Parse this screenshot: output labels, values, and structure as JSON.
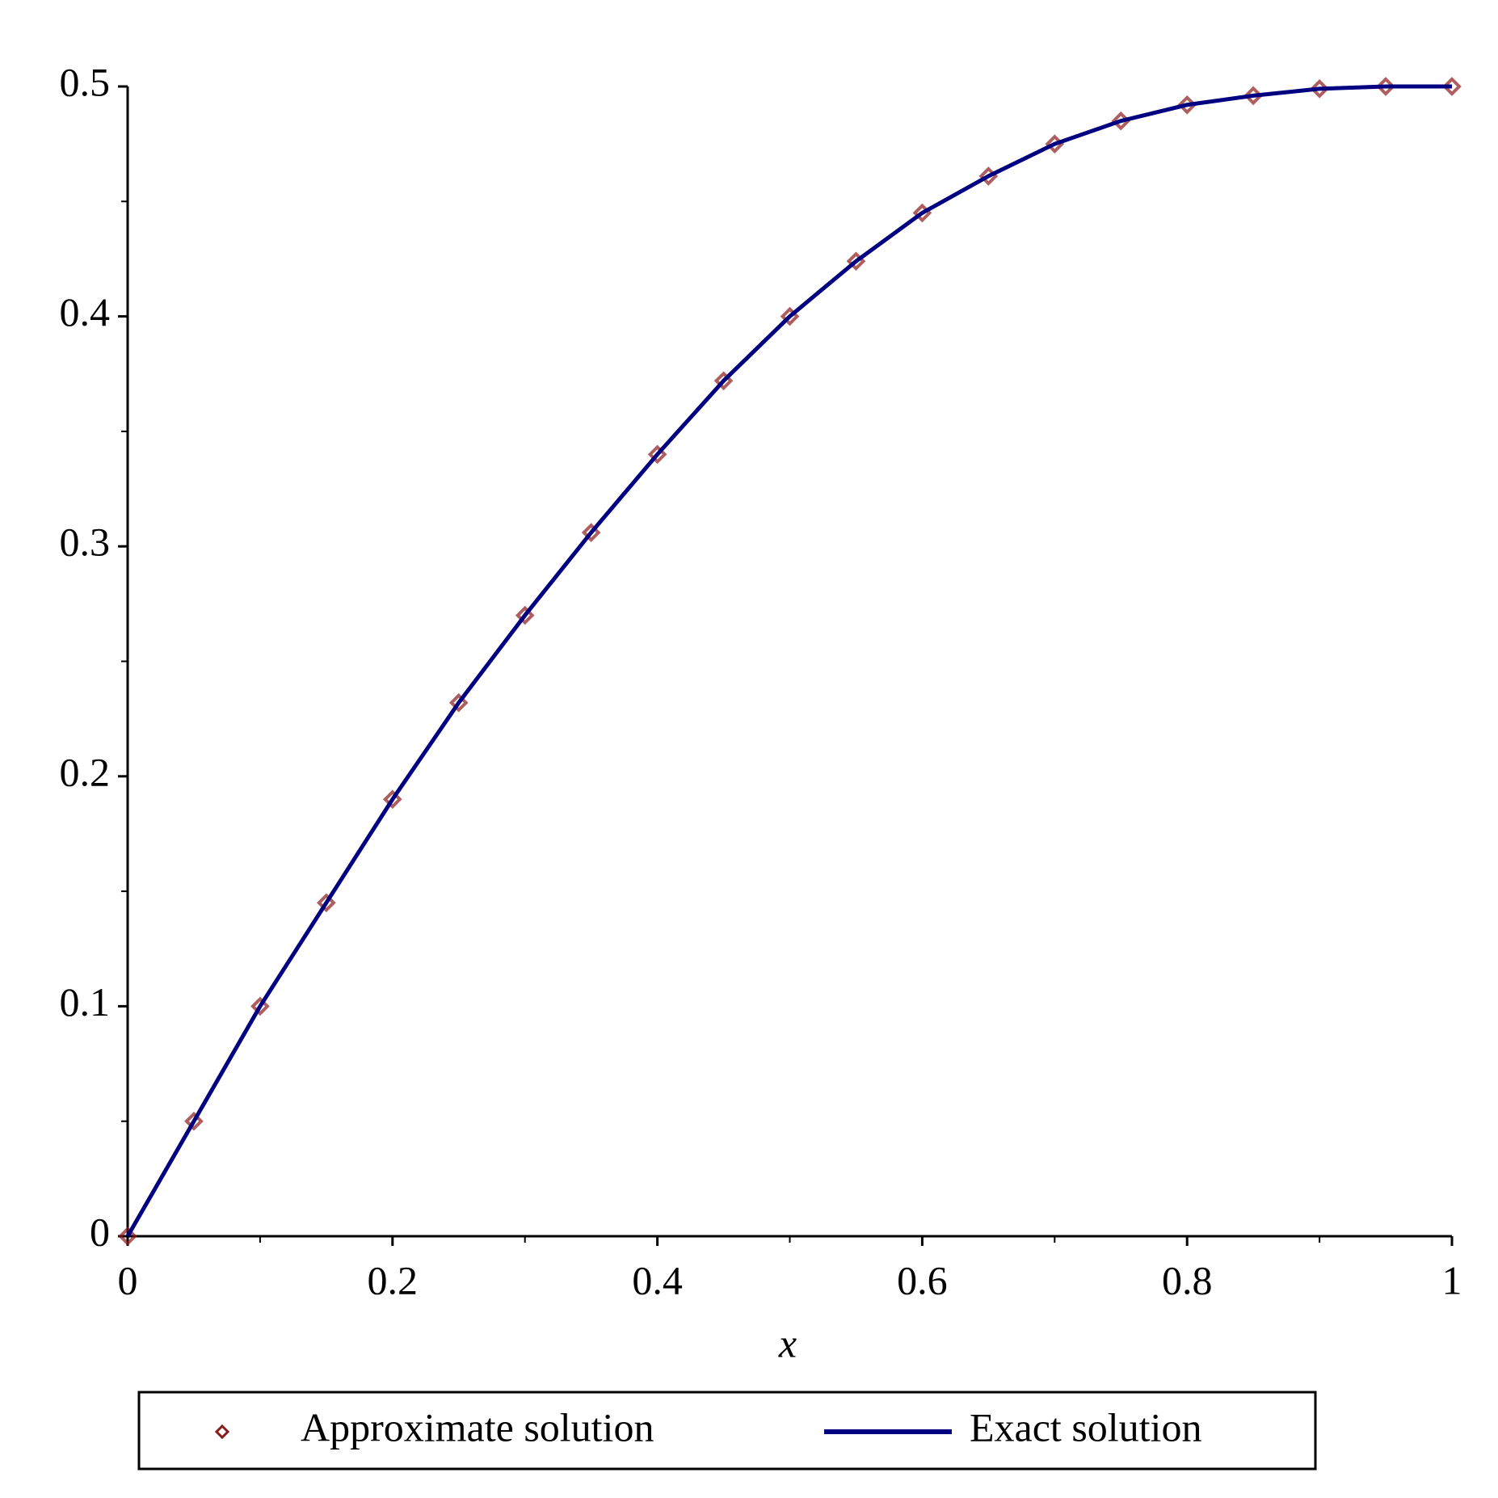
{
  "chart_data": {
    "type": "line",
    "x_label": "x",
    "x": [
      0,
      0.05,
      0.1,
      0.15,
      0.2,
      0.25,
      0.3,
      0.35,
      0.4,
      0.45,
      0.5,
      0.55,
      0.6,
      0.65,
      0.7,
      0.75,
      0.8,
      0.85,
      0.9,
      0.95,
      1
    ],
    "series": [
      {
        "name": "Approximate solution",
        "color": "#8b1a1a",
        "marker": "diamond",
        "values": [
          0,
          0.05,
          0.1,
          0.145,
          0.19,
          0.232,
          0.27,
          0.306,
          0.34,
          0.372,
          0.4,
          0.424,
          0.445,
          0.461,
          0.475,
          0.485,
          0.492,
          0.496,
          0.499,
          0.5,
          0.5
        ]
      },
      {
        "name": "Exact solution",
        "color": "#000080",
        "marker": "line",
        "values": [
          0,
          0.05,
          0.1,
          0.145,
          0.19,
          0.232,
          0.27,
          0.306,
          0.34,
          0.372,
          0.4,
          0.424,
          0.445,
          0.461,
          0.475,
          0.485,
          0.492,
          0.496,
          0.499,
          0.5,
          0.5
        ]
      }
    ],
    "xlim": [
      0,
      1
    ],
    "xticks": [
      0,
      0.2,
      0.4,
      0.6,
      0.8,
      1
    ],
    "xminorticks": [
      0.1,
      0.3,
      0.5,
      0.7,
      0.9
    ],
    "ylim": [
      0,
      0.5
    ],
    "yticks": [
      0,
      0.1,
      0.2,
      0.3,
      0.4,
      0.5
    ],
    "yminorticks": [
      0.05,
      0.15,
      0.25,
      0.35,
      0.45
    ],
    "grid": false,
    "legend": "bottom"
  }
}
